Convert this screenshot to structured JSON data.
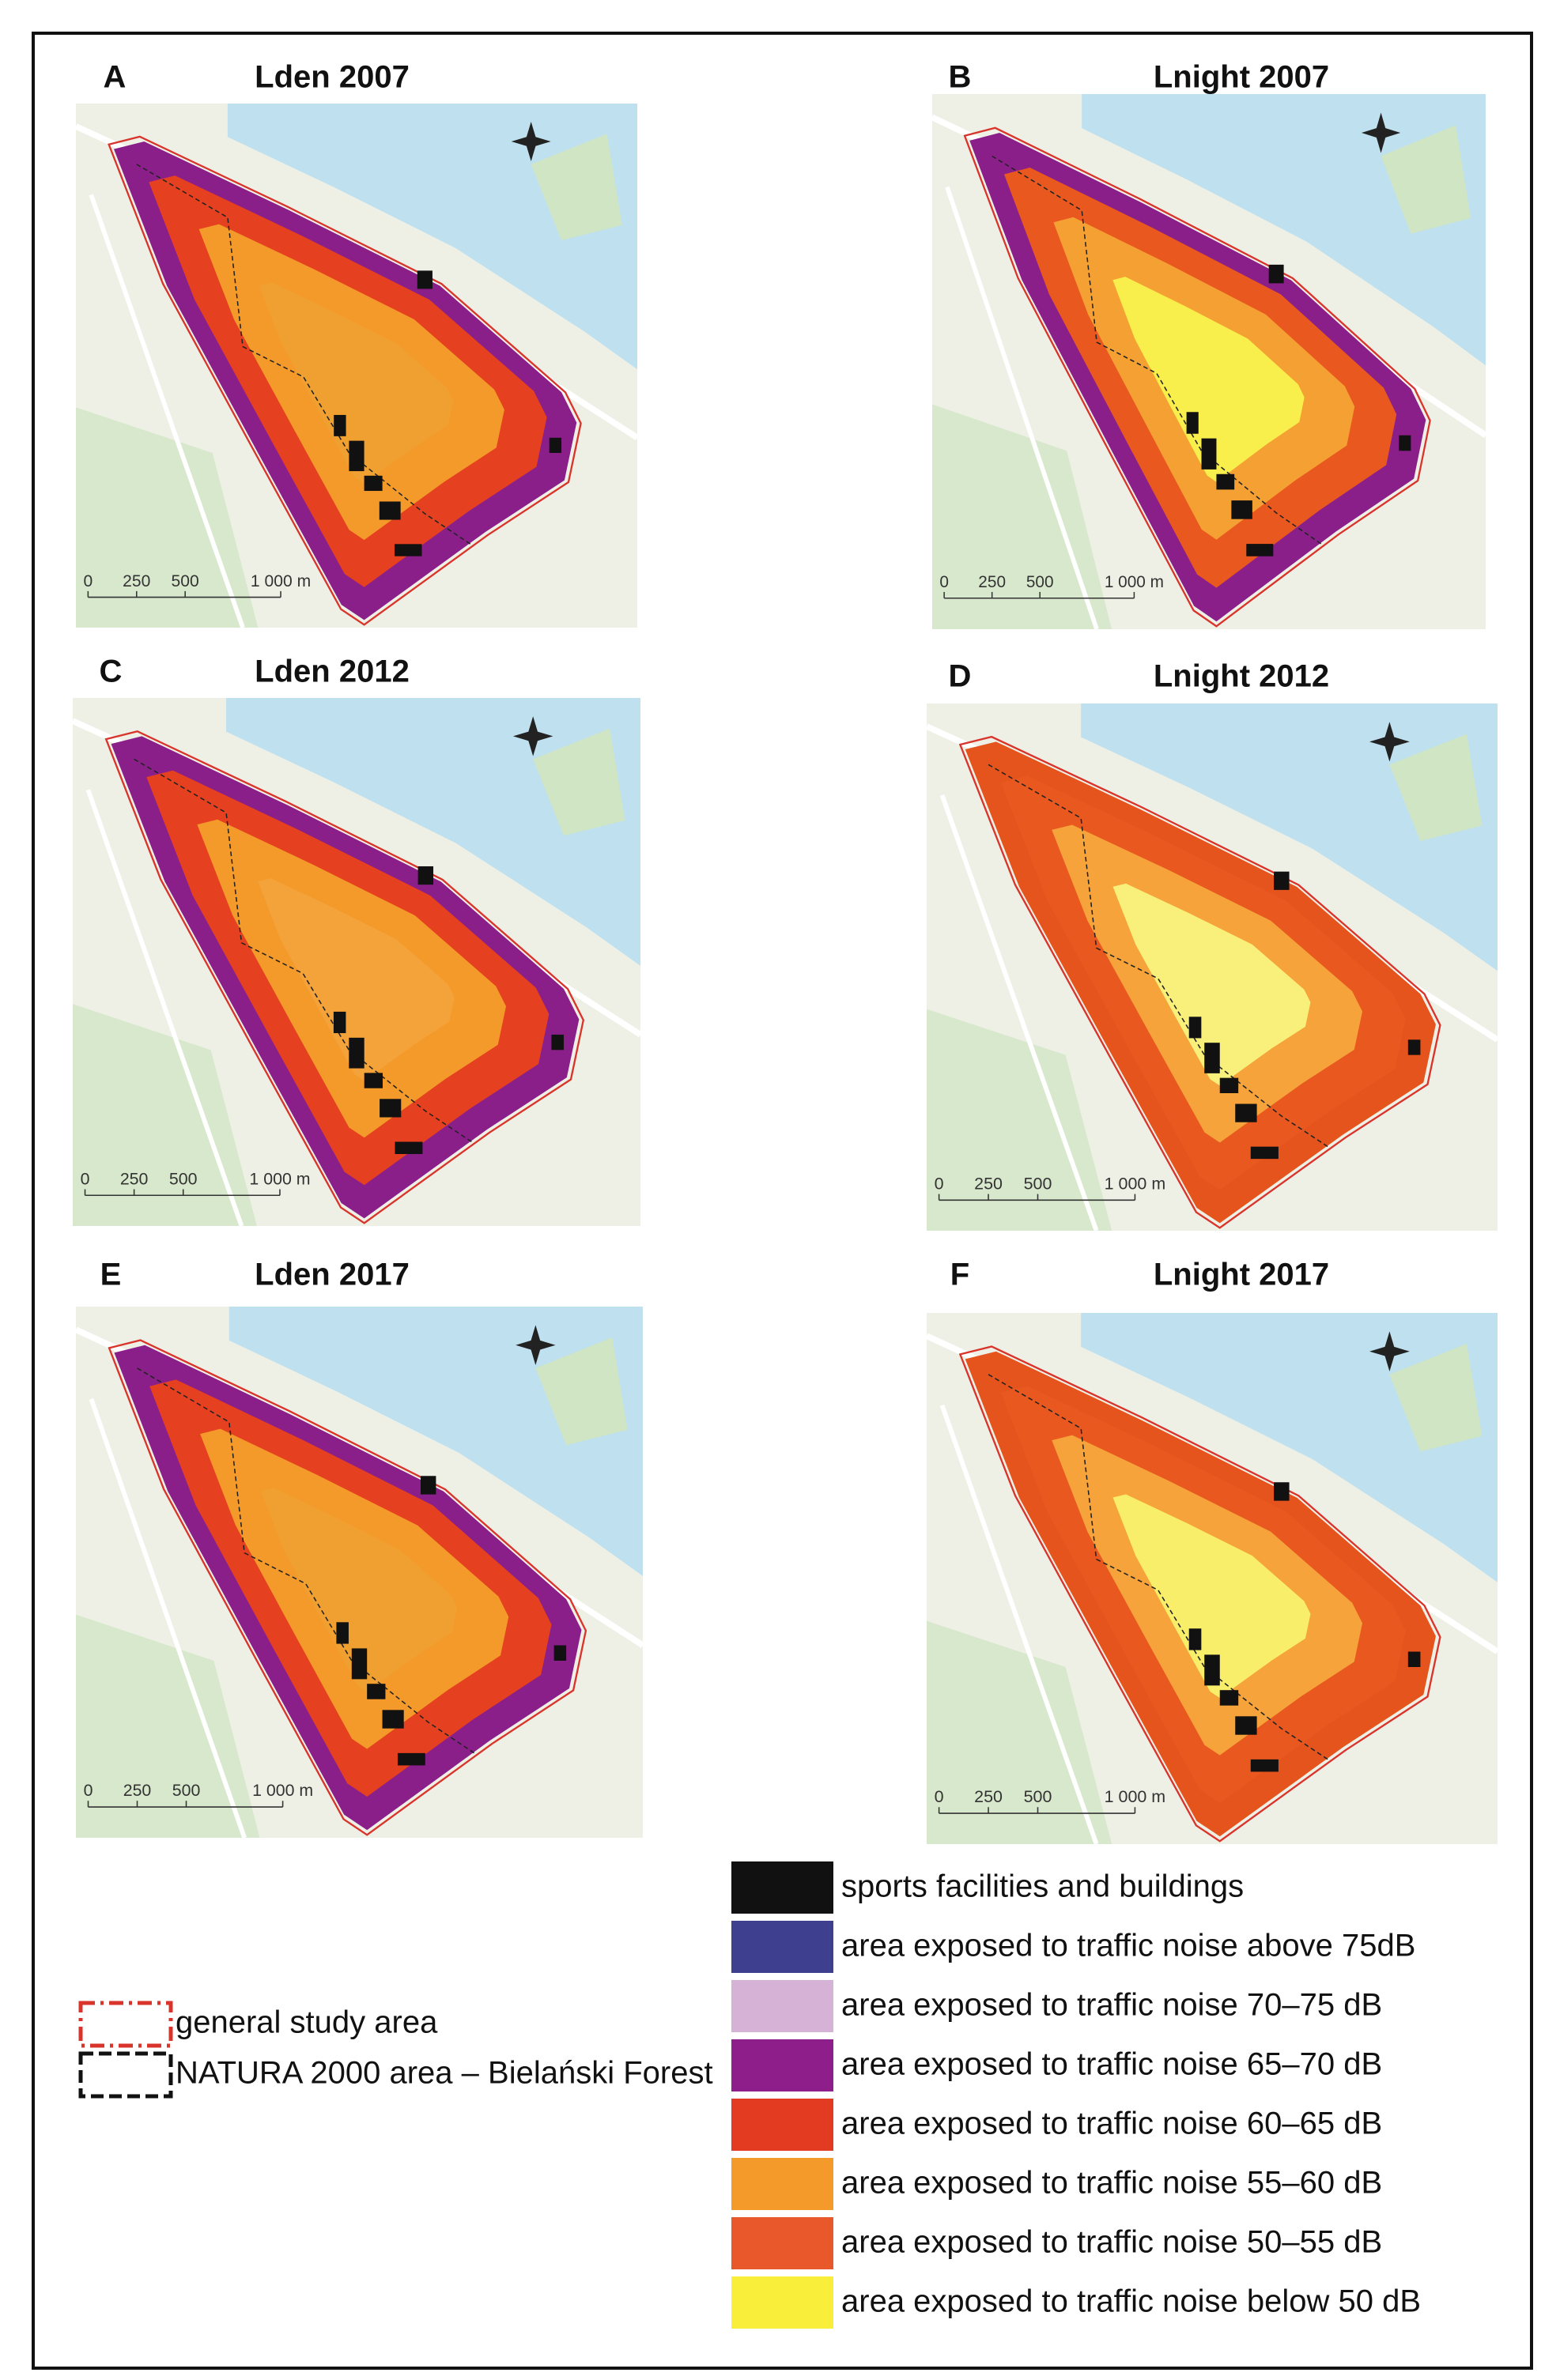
{
  "panels": [
    {
      "letter": "A",
      "title": "Lden 2007",
      "scale_labels": [
        "0",
        "250",
        "500",
        "1 000 m"
      ]
    },
    {
      "letter": "B",
      "title": "Lnight 2007",
      "scale_labels": [
        "0",
        "250",
        "500",
        "1 000 m"
      ]
    },
    {
      "letter": "C",
      "title": "Lden 2012",
      "scale_labels": [
        "0",
        "250",
        "500",
        "1 000 m"
      ]
    },
    {
      "letter": "D",
      "title": "Lnight 2012",
      "scale_labels": [
        "0",
        "250",
        "500",
        "1 000 m"
      ]
    },
    {
      "letter": "E",
      "title": "Lden 2017",
      "scale_labels": [
        "0",
        "250",
        "500",
        "1 000 m"
      ]
    },
    {
      "letter": "F",
      "title": "Lnight 2017",
      "scale_labels": [
        "0",
        "250",
        "500",
        "1 000 m"
      ]
    }
  ],
  "legend": {
    "areas": [
      "general study area",
      "NATURA 2000 area – Bielański Forest"
    ],
    "classes": [
      "sports facilities and buildings",
      "area exposed to traffic noise above 75dB",
      "area exposed to traffic noise 70–75 dB",
      "area exposed to traffic noise 65–70 dB",
      "area exposed to traffic noise 60–65 dB",
      "area exposed to traffic noise 55–60 dB",
      "area exposed to traffic noise 50–55 dB",
      "area exposed to traffic noise below 50 dB"
    ]
  }
}
